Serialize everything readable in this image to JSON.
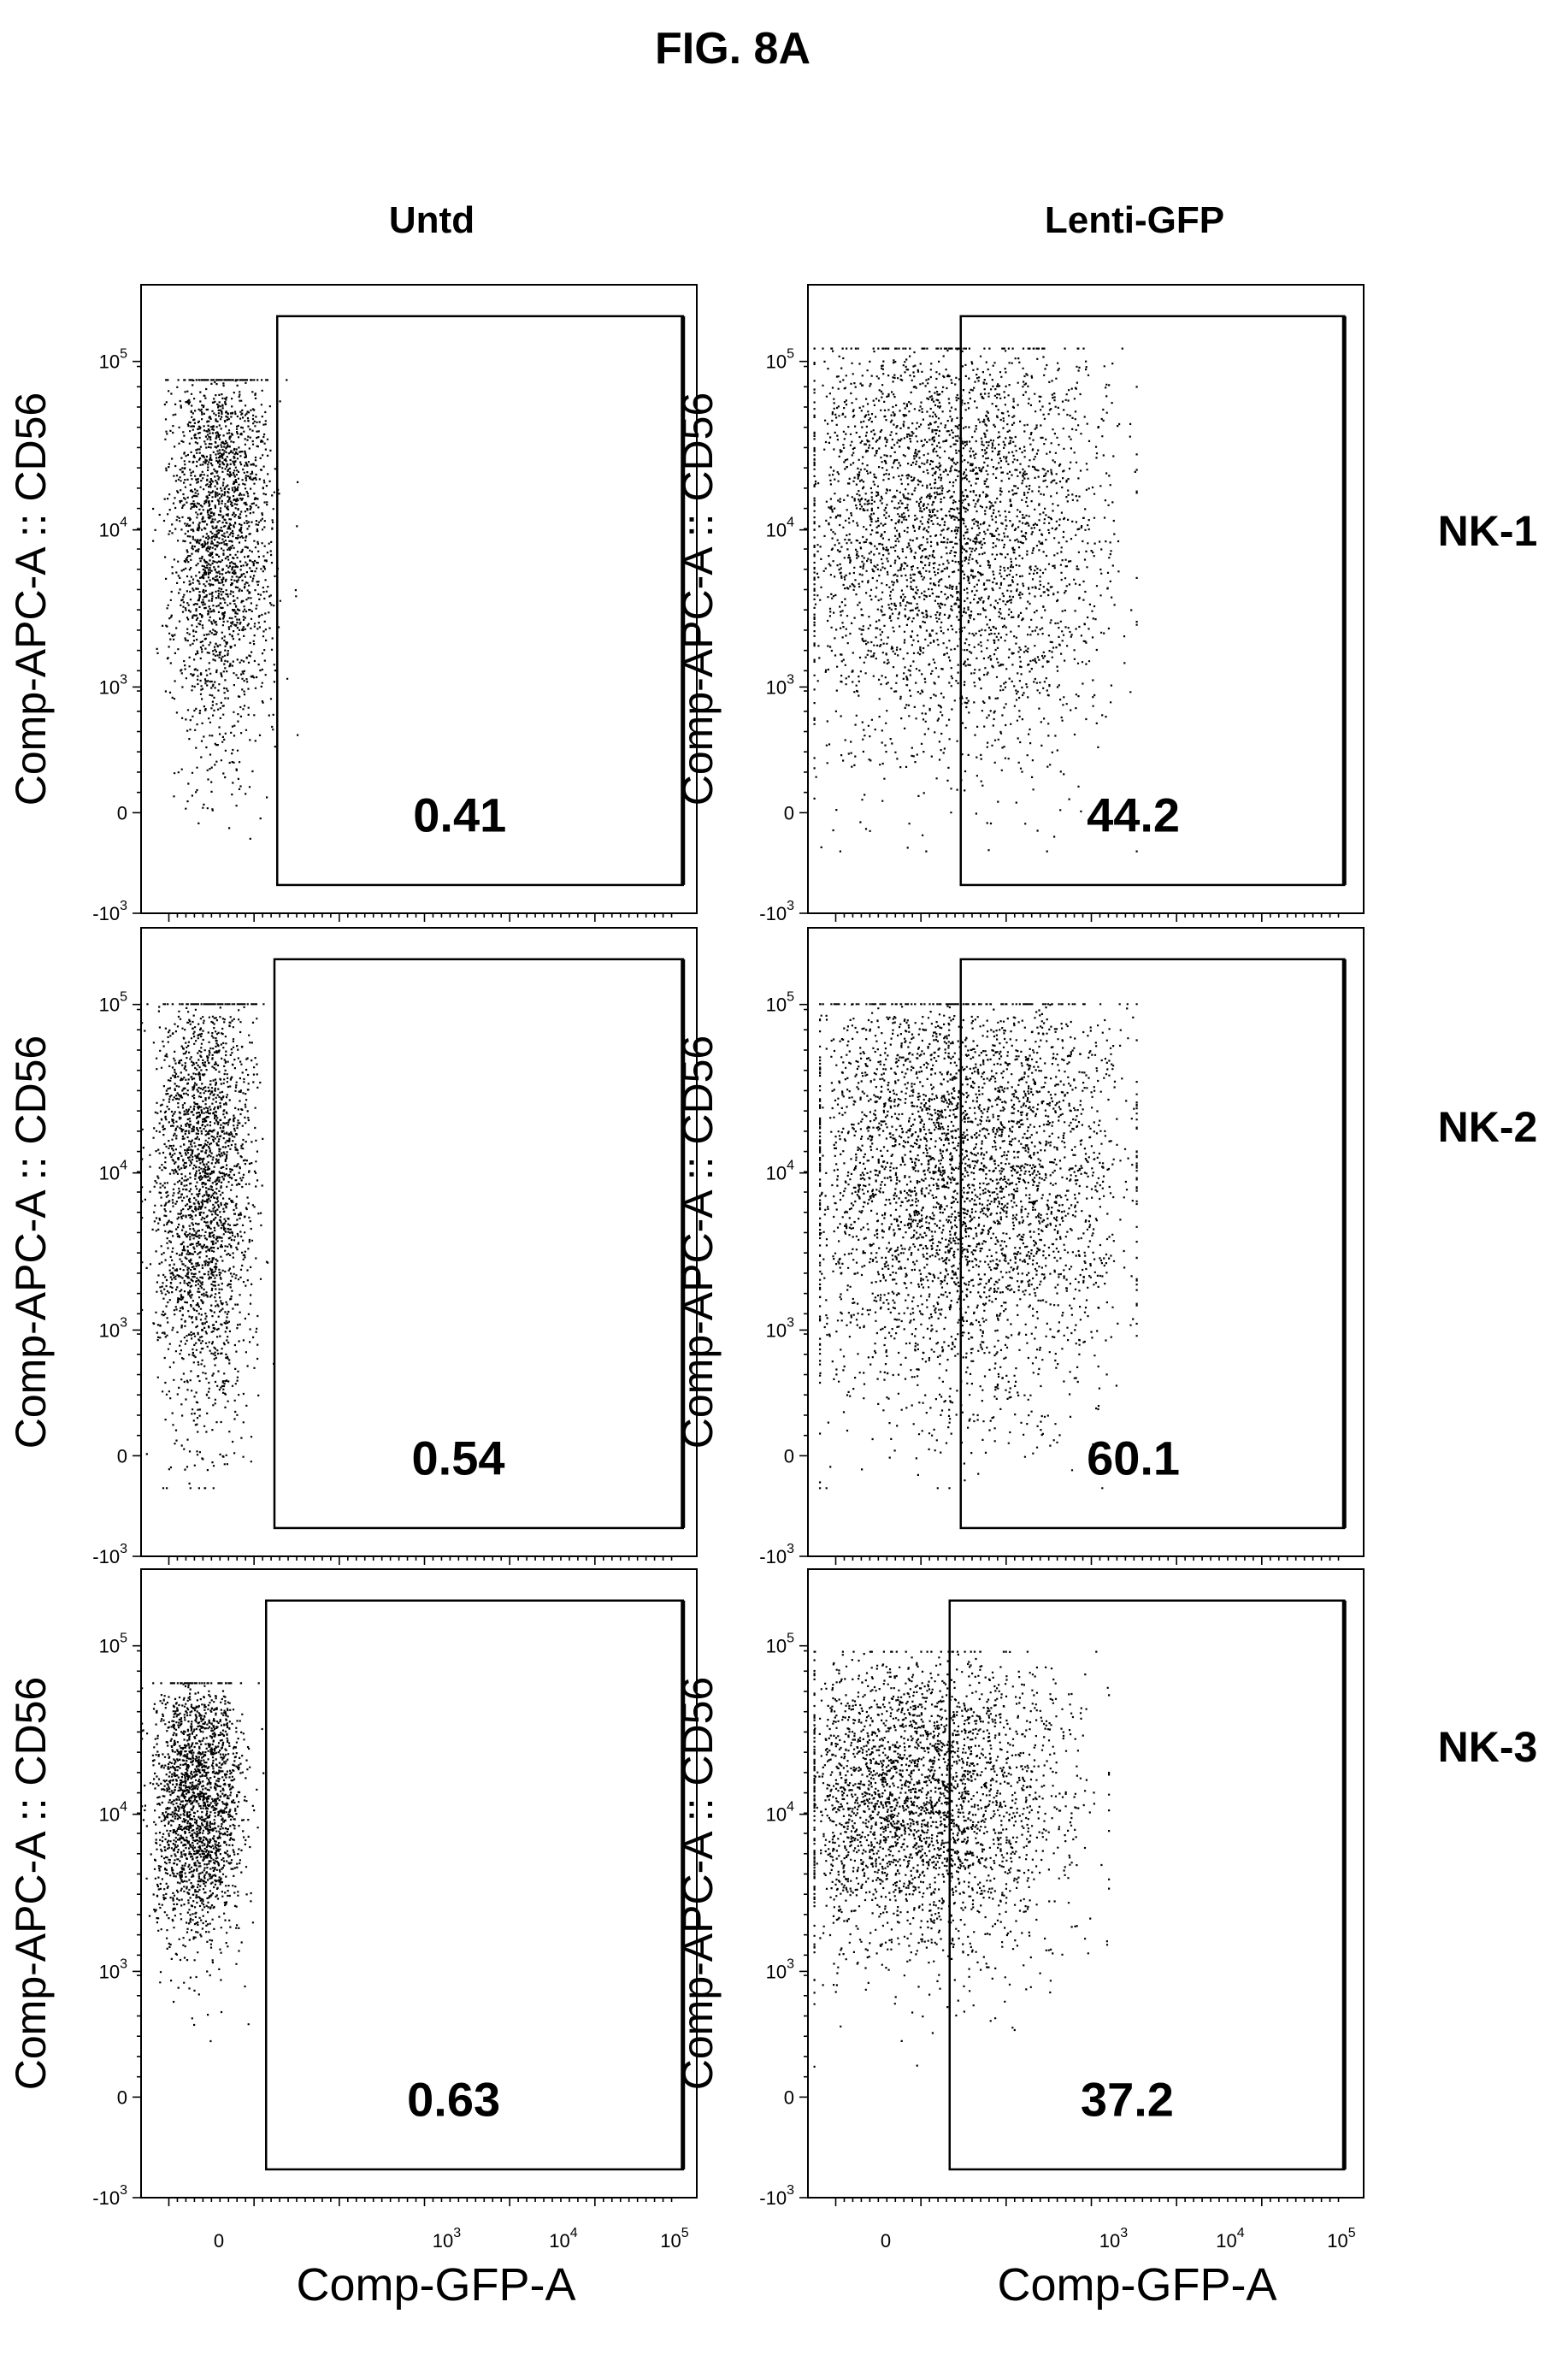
{
  "figure_title": "FIG. 8A",
  "column_titles": [
    "Untd",
    "Lenti-GFP"
  ],
  "row_labels": [
    "NK-1",
    "NK-2",
    "NK-3"
  ],
  "x_axis_label": "Comp-GFP-A",
  "y_axis_label": "Comp-APC-A :: CD56",
  "x_tick_labels": [
    {
      "value": "0",
      "exp": ""
    },
    {
      "value": "10",
      "exp": "3"
    },
    {
      "value": "10",
      "exp": "4"
    },
    {
      "value": "10",
      "exp": "5"
    }
  ],
  "y_tick_labels": [
    {
      "value": "10",
      "exp": "5"
    },
    {
      "value": "10",
      "exp": "4"
    },
    {
      "value": "10",
      "exp": "3"
    },
    {
      "value": "0",
      "exp": ""
    },
    {
      "value": "-10",
      "exp": "3"
    }
  ],
  "colors": {
    "ink": "#000000",
    "background": "#ffffff"
  },
  "chart_data": [
    {
      "type": "scatter",
      "row": "NK-1",
      "column": "Untd",
      "gate_percent": "0.41"
    },
    {
      "type": "scatter",
      "row": "NK-1",
      "column": "Lenti-GFP",
      "gate_percent": "44.2"
    },
    {
      "type": "scatter",
      "row": "NK-2",
      "column": "Untd",
      "gate_percent": "0.54"
    },
    {
      "type": "scatter",
      "row": "NK-2",
      "column": "Lenti-GFP",
      "gate_percent": "60.1"
    },
    {
      "type": "scatter",
      "row": "NK-3",
      "column": "Untd",
      "gate_percent": "0.63"
    },
    {
      "type": "scatter",
      "row": "NK-3",
      "column": "Lenti-GFP",
      "gate_percent": "37.2"
    }
  ]
}
